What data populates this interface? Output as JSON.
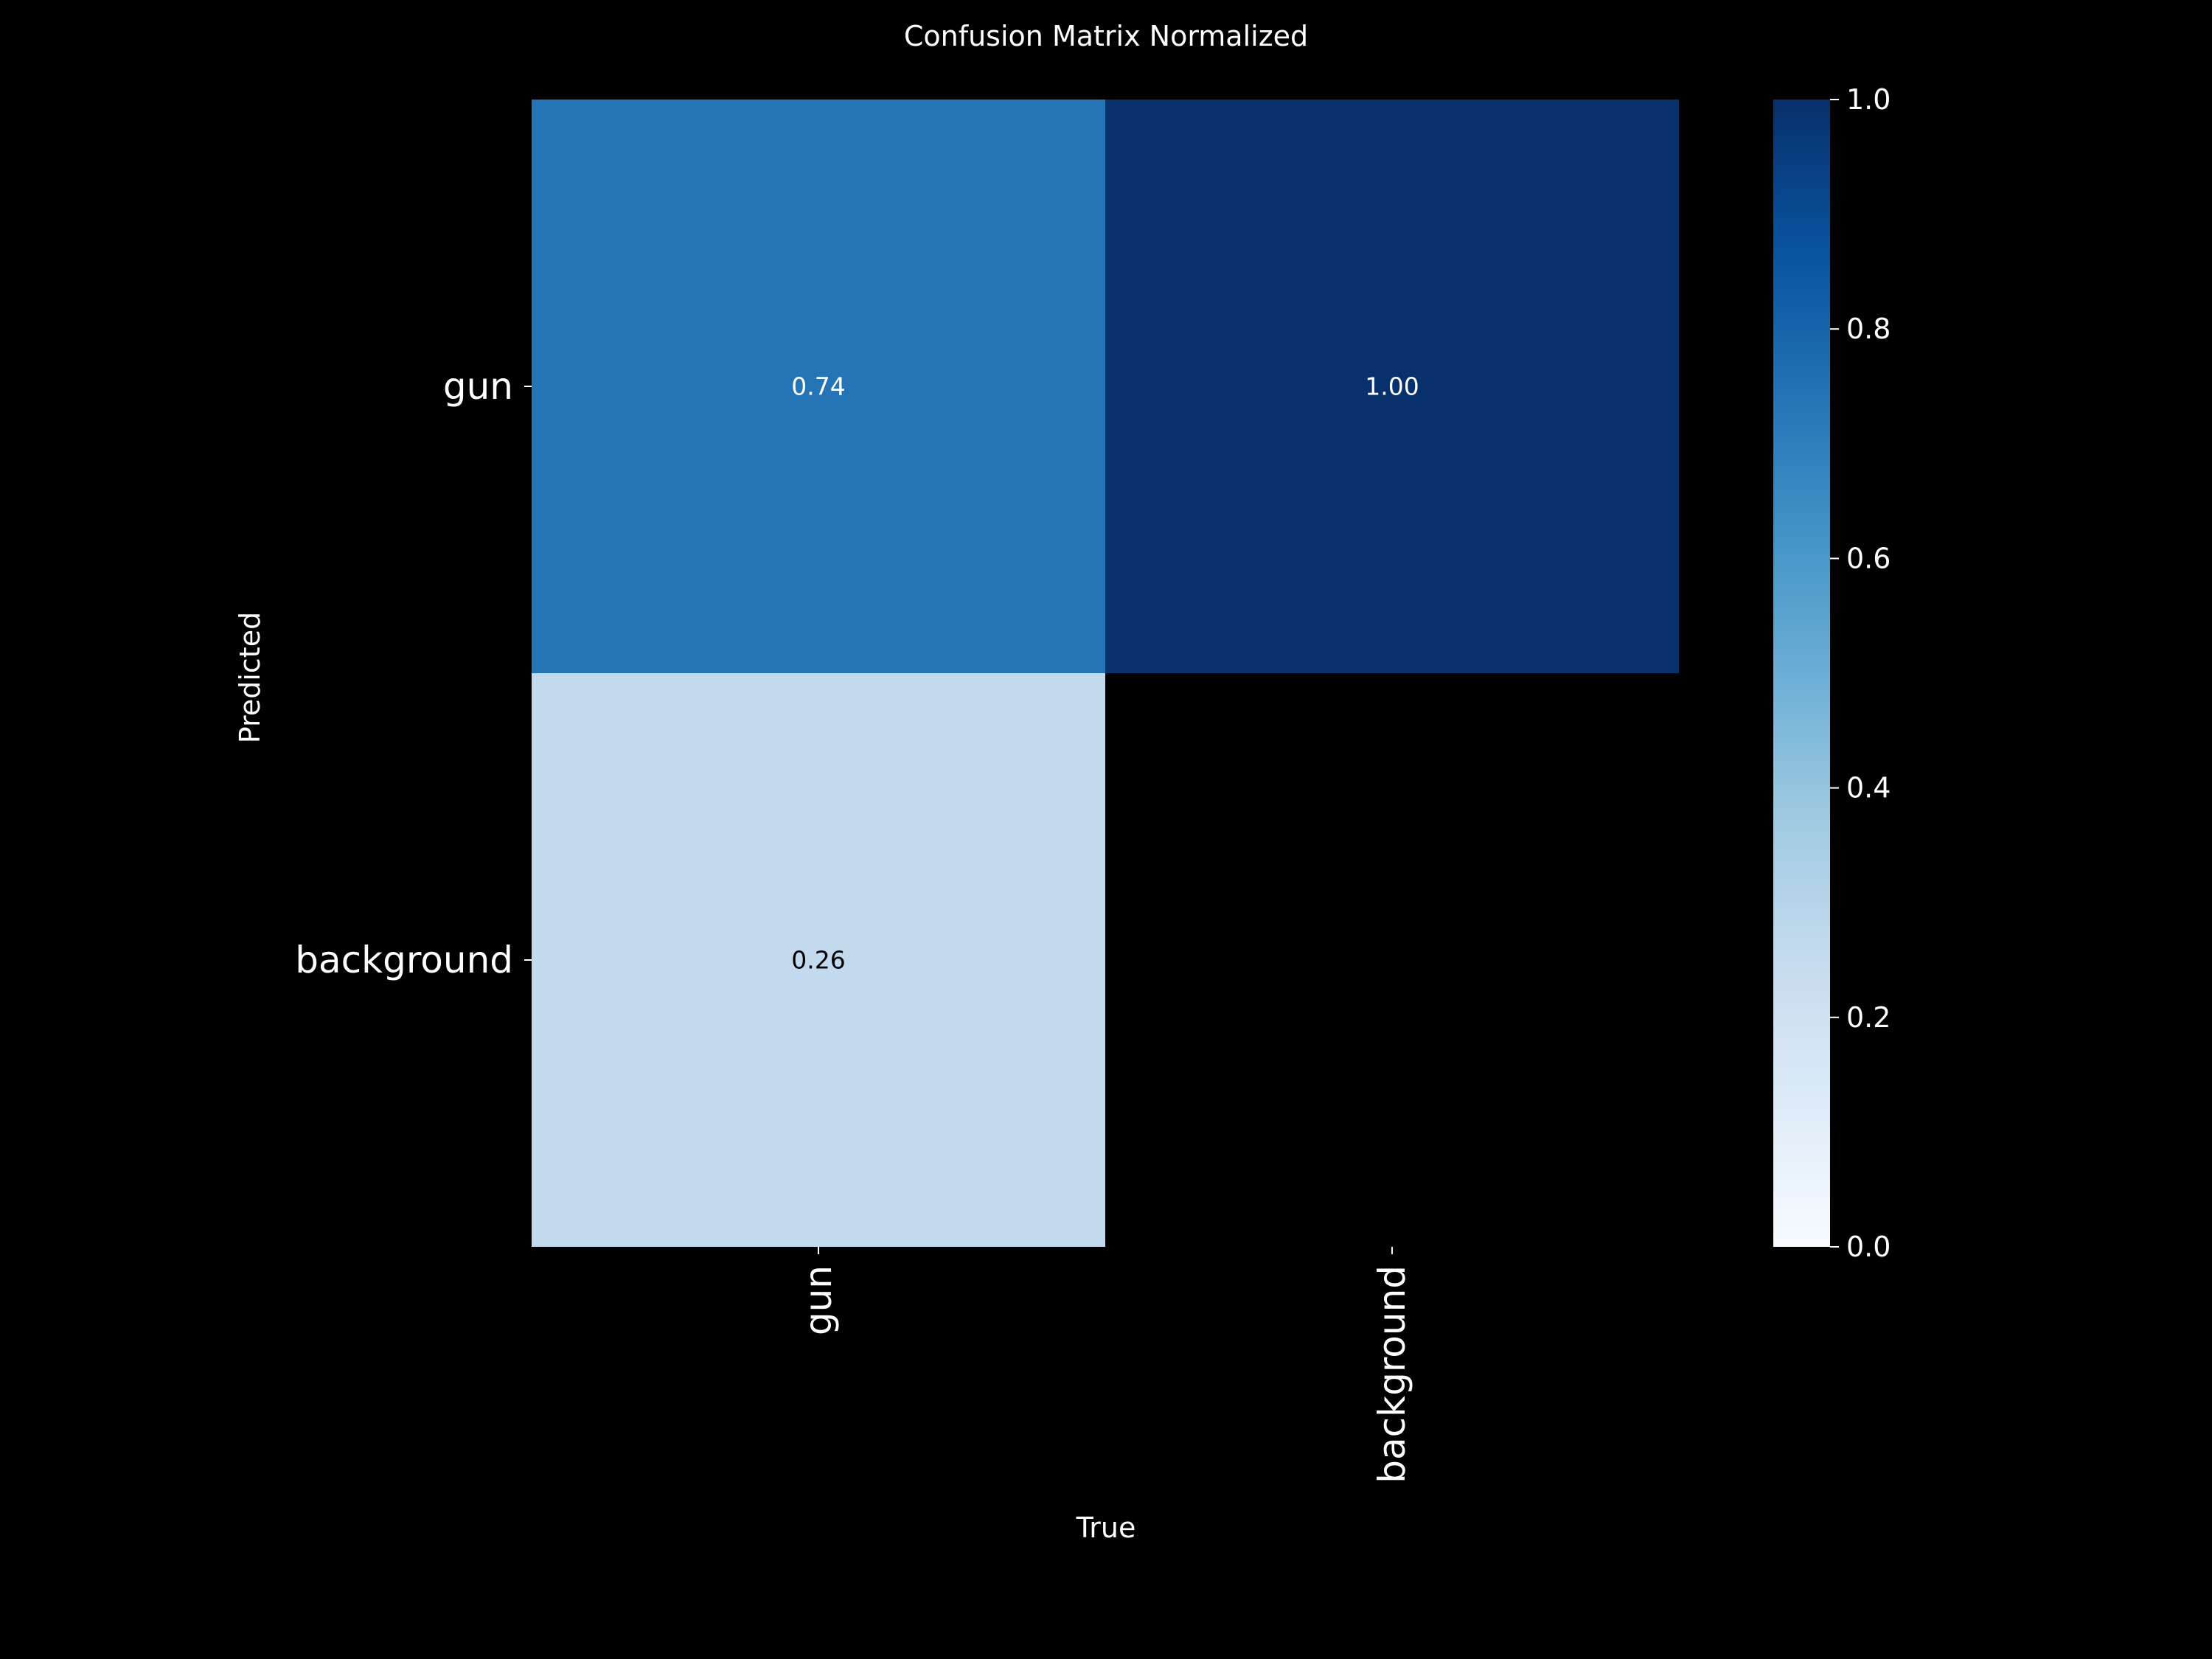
{
  "chart_data": {
    "type": "heatmap",
    "title": "Confusion Matrix Normalized",
    "xlabel": "True",
    "ylabel": "Predicted",
    "x_categories": [
      "gun",
      "background"
    ],
    "y_categories": [
      "gun",
      "background"
    ],
    "values": [
      [
        0.74,
        1.0
      ],
      [
        0.26,
        null
      ]
    ],
    "cell_labels": [
      [
        "0.74",
        "1.00"
      ],
      [
        "0.26",
        ""
      ]
    ],
    "colormap": "Blues",
    "colorbar": {
      "range": [
        0.0,
        1.0
      ],
      "ticks": [
        0.0,
        0.2,
        0.4,
        0.6,
        0.8,
        1.0
      ],
      "tick_labels": [
        "0.0",
        "0.2",
        "0.4",
        "0.6",
        "0.8",
        "1.0"
      ]
    },
    "background_color": "#000000",
    "grid": false
  }
}
